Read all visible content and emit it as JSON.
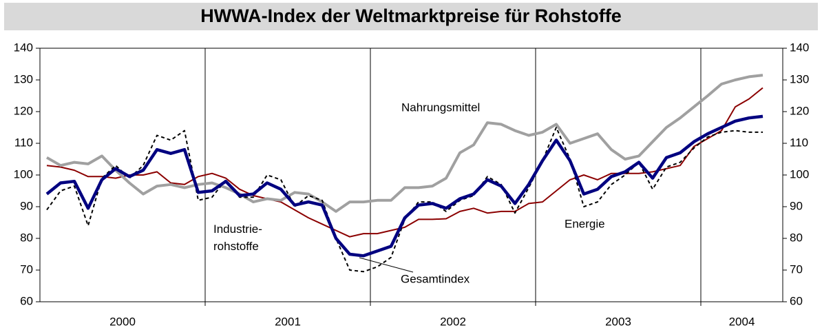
{
  "chart_data": {
    "type": "line",
    "title": "HWWA-Index der Weltmarktpreise für Rohstoffe",
    "categories": [
      null,
      null,
      null,
      null,
      null,
      null,
      null,
      null,
      null,
      null,
      null,
      null,
      null,
      null,
      null,
      null,
      null,
      null,
      null,
      null,
      null,
      null,
      null,
      null,
      null,
      null,
      null,
      null,
      null,
      null,
      null,
      null,
      null,
      null,
      null,
      null,
      null,
      null,
      null,
      null,
      null,
      null,
      null,
      null,
      null,
      null,
      null,
      null,
      null,
      null,
      null,
      null,
      null
    ],
    "year_labels": [
      "2000",
      "2001",
      "2002",
      "2003",
      "2004"
    ],
    "ylim": [
      60,
      140
    ],
    "yticks": [
      60,
      70,
      80,
      90,
      100,
      110,
      120,
      130,
      140
    ],
    "y2lim": [
      60,
      140
    ],
    "y2ticks": [
      60,
      70,
      80,
      90,
      100,
      110,
      120,
      130,
      140
    ],
    "series": [
      {
        "name": "Industrierohstoffe",
        "color": "#8b0000",
        "line_style": "solid",
        "values": [
          103,
          102.5,
          101.5,
          99.5,
          99.5,
          99,
          100,
          100,
          101,
          97.5,
          97,
          99.5,
          100.5,
          99,
          95.5,
          93.5,
          92.5,
          91.5,
          89,
          86.5,
          84.5,
          82.5,
          80.5,
          81.5,
          81.5,
          82.5,
          83.5,
          86,
          86,
          86.2,
          88.5,
          89.5,
          88,
          88.5,
          88.5,
          91,
          91.5,
          95,
          98.5,
          100,
          98.5,
          100.5,
          100.5,
          100.5,
          101,
          102,
          103,
          109,
          111.5,
          114,
          121.5,
          124,
          127.5
        ]
      },
      {
        "name": "Nahrungsmittel",
        "color": "#a0a0a0",
        "line_style": "solid",
        "values": [
          105.5,
          103,
          104,
          103.5,
          106,
          101.5,
          97.5,
          94,
          96.5,
          97,
          96,
          97,
          97.5,
          96,
          94,
          91.5,
          92.5,
          92,
          94.5,
          94,
          91.5,
          88.5,
          91.5,
          91.5,
          92,
          92,
          96,
          96,
          96.5,
          99,
          107,
          109.5,
          116.5,
          116,
          114,
          112.5,
          113.5,
          116,
          110,
          111.5,
          113,
          108,
          105,
          106,
          110.5,
          115,
          118,
          121.5,
          125,
          128.7,
          130,
          131,
          131.5
        ]
      },
      {
        "name": "Energie",
        "color": "#000000",
        "line_style": "dashed",
        "values": [
          89,
          95,
          96.5,
          84,
          99,
          103,
          99,
          103,
          112.5,
          111,
          114,
          92,
          93,
          98.5,
          93,
          93,
          100,
          98.5,
          90,
          93.5,
          92,
          80,
          70,
          69.5,
          71,
          74,
          86,
          91.5,
          91.5,
          88.5,
          92,
          93.5,
          99.5,
          97,
          88,
          96,
          104.5,
          115,
          105,
          90,
          91.5,
          97,
          100,
          104,
          95.5,
          102.5,
          104,
          108.5,
          112,
          113.5,
          114,
          113.5,
          113.5
        ]
      },
      {
        "name": "Gesamtindex",
        "color": "#000080",
        "line_style": "solid",
        "values": [
          94,
          97.5,
          98,
          89.5,
          98.5,
          102,
          99.5,
          101.5,
          108,
          106.8,
          108,
          94.5,
          95,
          98,
          93.5,
          94,
          97.5,
          95.5,
          90.5,
          91.5,
          90.5,
          80,
          75,
          74.5,
          76,
          77.5,
          86.5,
          90.5,
          91,
          89.5,
          92.5,
          94,
          98.5,
          96.5,
          91,
          97,
          104.5,
          111,
          104.5,
          94,
          95.5,
          99.5,
          101,
          104,
          99,
          105.5,
          107,
          110.5,
          113,
          115,
          117,
          118,
          118.5
        ]
      }
    ]
  }
}
